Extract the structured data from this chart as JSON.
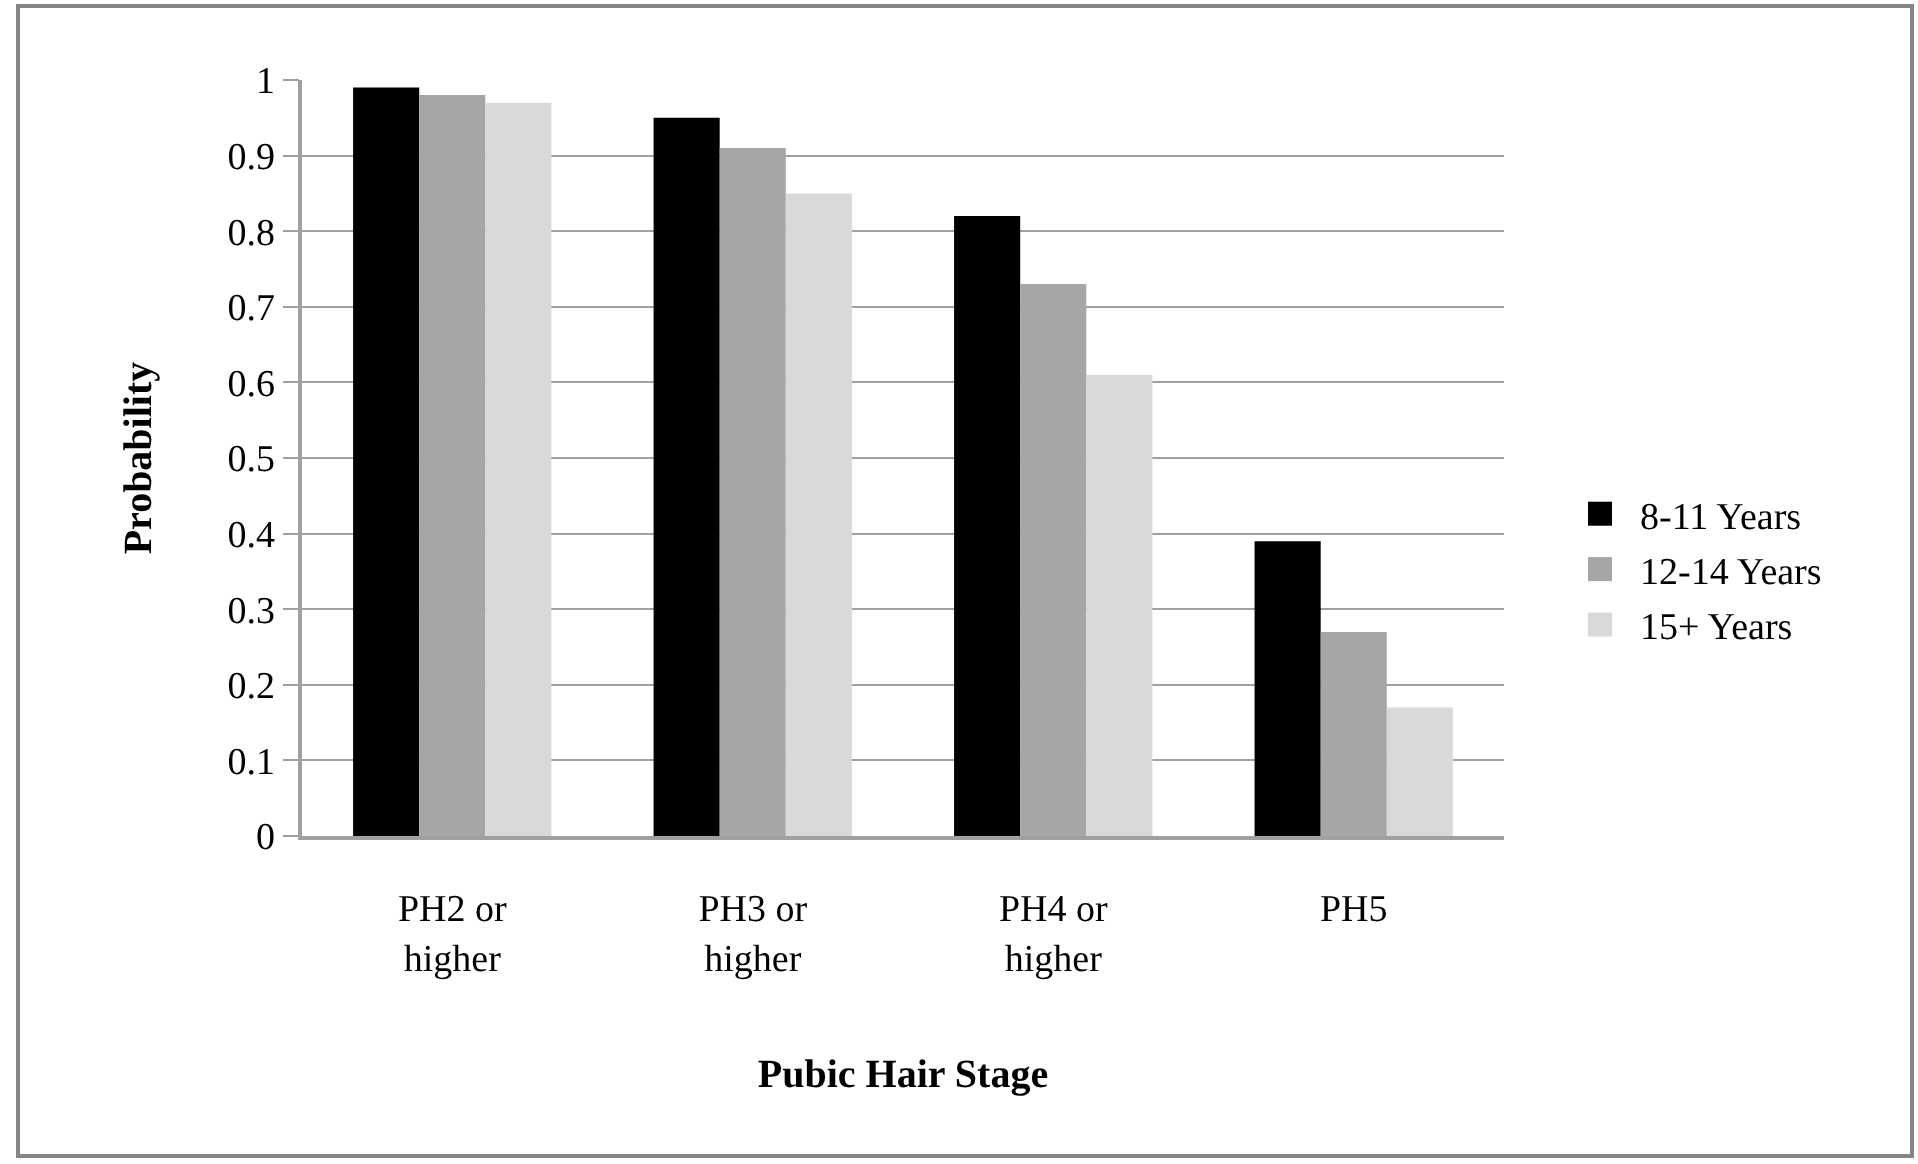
{
  "chart_data": {
    "type": "bar",
    "xlabel": "Pubic Hair Stage",
    "ylabel": "Probability",
    "categories": [
      "PH2 or higher",
      "PH3 or higher",
      "PH4 or higher",
      "PH5"
    ],
    "series": [
      {
        "name": "8-11 Years",
        "color": "#000000",
        "values": [
          0.99,
          0.95,
          0.82,
          0.39
        ]
      },
      {
        "name": "12-14 Years",
        "color": "#a6a6a6",
        "values": [
          0.98,
          0.91,
          0.73,
          0.27
        ]
      },
      {
        "name": "15+ Years",
        "color": "#d9d9d9",
        "values": [
          0.97,
          0.85,
          0.61,
          0.17
        ]
      }
    ],
    "ylim": [
      0,
      1
    ],
    "yticks": [
      0,
      0.1,
      0.2,
      0.3,
      0.4,
      0.5,
      0.6,
      0.7,
      0.8,
      0.9,
      1
    ],
    "grid": "y",
    "legend": "right"
  }
}
